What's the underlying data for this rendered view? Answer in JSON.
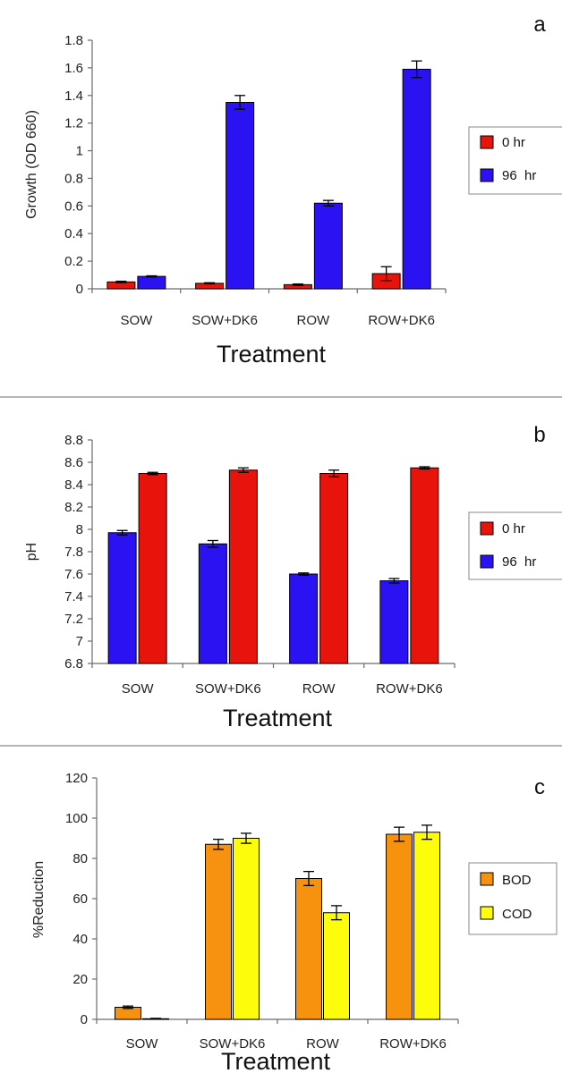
{
  "chart_data": [
    {
      "panel": "a",
      "type": "bar",
      "categories": [
        "SOW",
        "SOW+DK6",
        "ROW",
        "ROW+DK6"
      ],
      "xlabel": "Treatment",
      "ylabel": "Growth (OD 660)",
      "ylim": [
        0,
        1.8
      ],
      "yticks": [
        "0",
        "0.2",
        "0.4",
        "0.6",
        "0.8",
        "1",
        "1.2",
        "1.4",
        "1.6",
        "1.8"
      ],
      "grid": false,
      "legend_position": "right",
      "series": [
        {
          "name": "0 hr",
          "color": "#e8140c",
          "values": [
            0.05,
            0.04,
            0.03,
            0.11
          ],
          "errors": [
            0.005,
            0.004,
            0.005,
            0.05
          ]
        },
        {
          "name": "96  hr",
          "color": "#2b12f2",
          "values": [
            0.09,
            1.35,
            0.62,
            1.59
          ],
          "errors": [
            0.004,
            0.05,
            0.02,
            0.06
          ]
        }
      ]
    },
    {
      "panel": "b",
      "type": "bar",
      "categories": [
        "SOW",
        "SOW+DK6",
        "ROW",
        "ROW+DK6"
      ],
      "xlabel": "Treatment",
      "ylabel": "pH",
      "ylim": [
        6.8,
        8.8
      ],
      "yticks": [
        "6.8",
        "7",
        "7.2",
        "7.4",
        "7.6",
        "7.8",
        "8",
        "8.2",
        "8.4",
        "8.6",
        "8.8"
      ],
      "grid": false,
      "legend_position": "right",
      "series": [
        {
          "name": "0 hr",
          "color": "#e8140c",
          "values": [
            8.5,
            8.53,
            8.5,
            8.55
          ],
          "errors": [
            0.01,
            0.02,
            0.03,
            0.01
          ]
        },
        {
          "name": "96  hr",
          "color": "#2b12f2",
          "values": [
            7.97,
            7.87,
            7.6,
            7.54
          ],
          "errors": [
            0.02,
            0.03,
            0.01,
            0.02
          ]
        }
      ],
      "draw_order": [
        1,
        0
      ]
    },
    {
      "panel": "c",
      "type": "bar",
      "categories": [
        "SOW",
        "SOW+DK6",
        "ROW",
        "ROW+DK6"
      ],
      "xlabel": "Treatment",
      "ylabel": "%Reduction",
      "ylim": [
        0,
        120
      ],
      "yticks": [
        "0",
        "20",
        "40",
        "60",
        "80",
        "100",
        "120"
      ],
      "grid": false,
      "legend_position": "right",
      "series": [
        {
          "name": "BOD",
          "color": "#f7920f",
          "values": [
            6,
            87,
            70,
            92
          ],
          "errors": [
            0.6,
            2.5,
            3.5,
            3.5
          ]
        },
        {
          "name": "COD",
          "color": "#fdfc0a",
          "values": [
            0.3,
            90,
            53,
            93
          ],
          "errors": [
            0.2,
            2.5,
            3.5,
            3.5
          ]
        }
      ]
    }
  ]
}
